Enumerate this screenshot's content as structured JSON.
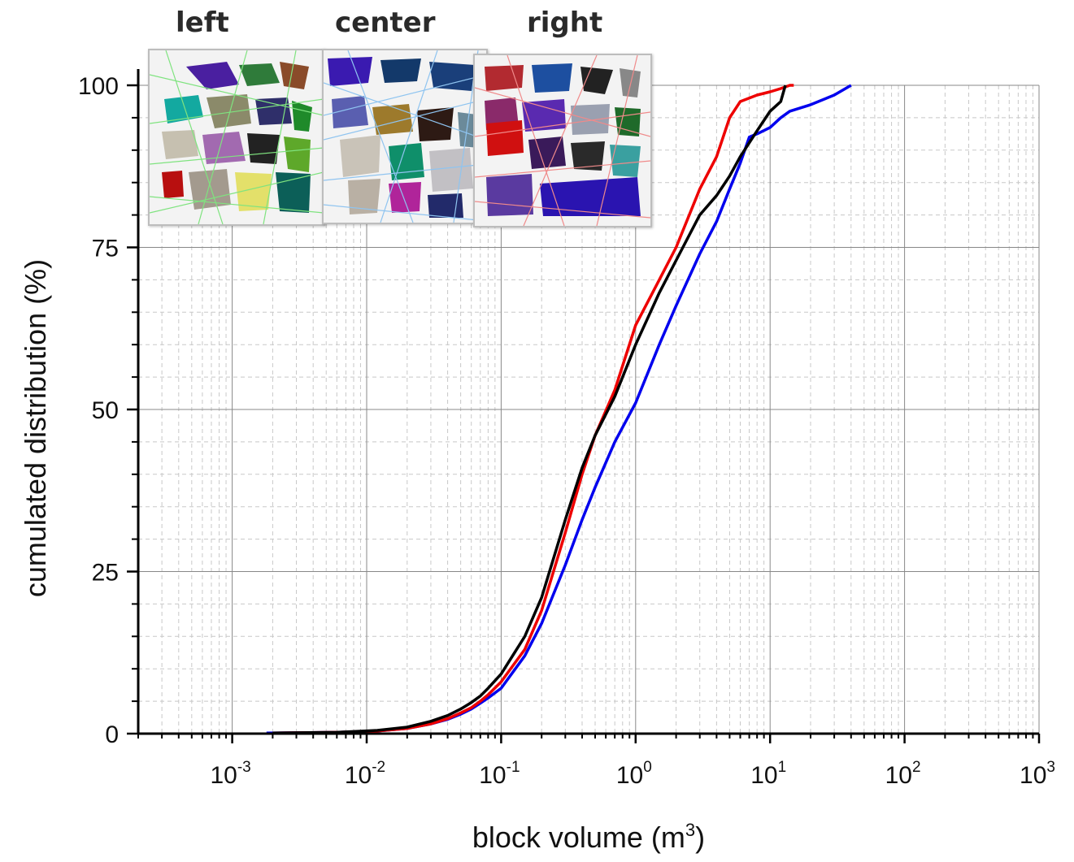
{
  "chart_data": {
    "type": "line",
    "xlabel": "block volume (m",
    "xlabel_sup": "3",
    "xlabel_close": ")",
    "ylabel": "cumulated distribution (%)",
    "xscale": "log",
    "xlim": [
      0.0002,
      1000
    ],
    "ylim": [
      0,
      100
    ],
    "grid": true,
    "x_ticks": [
      {
        "base": "10",
        "exp": "-3",
        "value": 0.001
      },
      {
        "base": "10",
        "exp": "-2",
        "value": 0.01
      },
      {
        "base": "10",
        "exp": "-1",
        "value": 0.1
      },
      {
        "base": "10",
        "exp": "0",
        "value": 1
      },
      {
        "base": "10",
        "exp": "1",
        "value": 10
      },
      {
        "base": "10",
        "exp": "2",
        "value": 100
      },
      {
        "base": "10",
        "exp": "3",
        "value": 1000
      }
    ],
    "y_ticks": [
      "0",
      "25",
      "50",
      "75",
      "100"
    ],
    "series": [
      {
        "color": "#0000ee",
        "x": [
          0.0018,
          0.006,
          0.012,
          0.02,
          0.03,
          0.04,
          0.05,
          0.06,
          0.07,
          0.08,
          0.1,
          0.15,
          0.2,
          0.3,
          0.4,
          0.5,
          0.7,
          1.0,
          1.5,
          2.0,
          3.0,
          4.0,
          5.0,
          6.0,
          7.0,
          8.0,
          10.0,
          12.0,
          14.0,
          20.0,
          30.0,
          40.0
        ],
        "y": [
          0.1,
          0.2,
          0.4,
          0.8,
          1.5,
          2.2,
          3.0,
          3.8,
          4.7,
          5.5,
          7.0,
          12.0,
          17.0,
          26.0,
          33.0,
          38.0,
          45.0,
          51.0,
          60.0,
          66.0,
          74.0,
          79.0,
          84.0,
          88.0,
          92.0,
          92.5,
          93.5,
          95.0,
          96.0,
          97.0,
          98.5,
          100.0
        ]
      },
      {
        "color": "#ee0000",
        "x": [
          0.002,
          0.006,
          0.012,
          0.02,
          0.03,
          0.04,
          0.05,
          0.06,
          0.07,
          0.08,
          0.1,
          0.15,
          0.2,
          0.3,
          0.4,
          0.5,
          0.7,
          1.0,
          1.5,
          2.0,
          3.0,
          4.0,
          5.0,
          6.0,
          8.0,
          10.0,
          12.0,
          14.0,
          15.0
        ],
        "y": [
          0.1,
          0.2,
          0.4,
          0.8,
          1.5,
          2.3,
          3.2,
          4.0,
          5.0,
          6.0,
          8.0,
          13.0,
          19.0,
          31.0,
          40.0,
          46.0,
          53.0,
          63.0,
          70.0,
          75.0,
          84.0,
          89.0,
          95.0,
          97.5,
          98.5,
          99.0,
          99.5,
          100.0,
          100.0
        ]
      },
      {
        "color": "#000000",
        "x": [
          0.002,
          0.006,
          0.012,
          0.02,
          0.03,
          0.04,
          0.05,
          0.06,
          0.07,
          0.08,
          0.1,
          0.15,
          0.2,
          0.3,
          0.4,
          0.5,
          0.7,
          1.0,
          1.5,
          2.0,
          3.0,
          4.0,
          5.0,
          6.0,
          8.0,
          10.0,
          12.0,
          13.0
        ],
        "y": [
          0.1,
          0.2,
          0.5,
          1.0,
          1.9,
          2.8,
          3.8,
          4.8,
          5.8,
          7.0,
          9.2,
          15.0,
          21.0,
          33.0,
          41.0,
          46.0,
          52.0,
          60.0,
          68.0,
          73.0,
          80.0,
          83.0,
          86.0,
          89.0,
          93.0,
          96.0,
          97.5,
          100.0
        ]
      }
    ]
  },
  "insets": {
    "left": {
      "label": "left",
      "line_color": "#7fe37f"
    },
    "center": {
      "label": "center",
      "line_color": "#8fc4f0"
    },
    "right": {
      "label": "right",
      "line_color": "#f08a8a"
    }
  }
}
